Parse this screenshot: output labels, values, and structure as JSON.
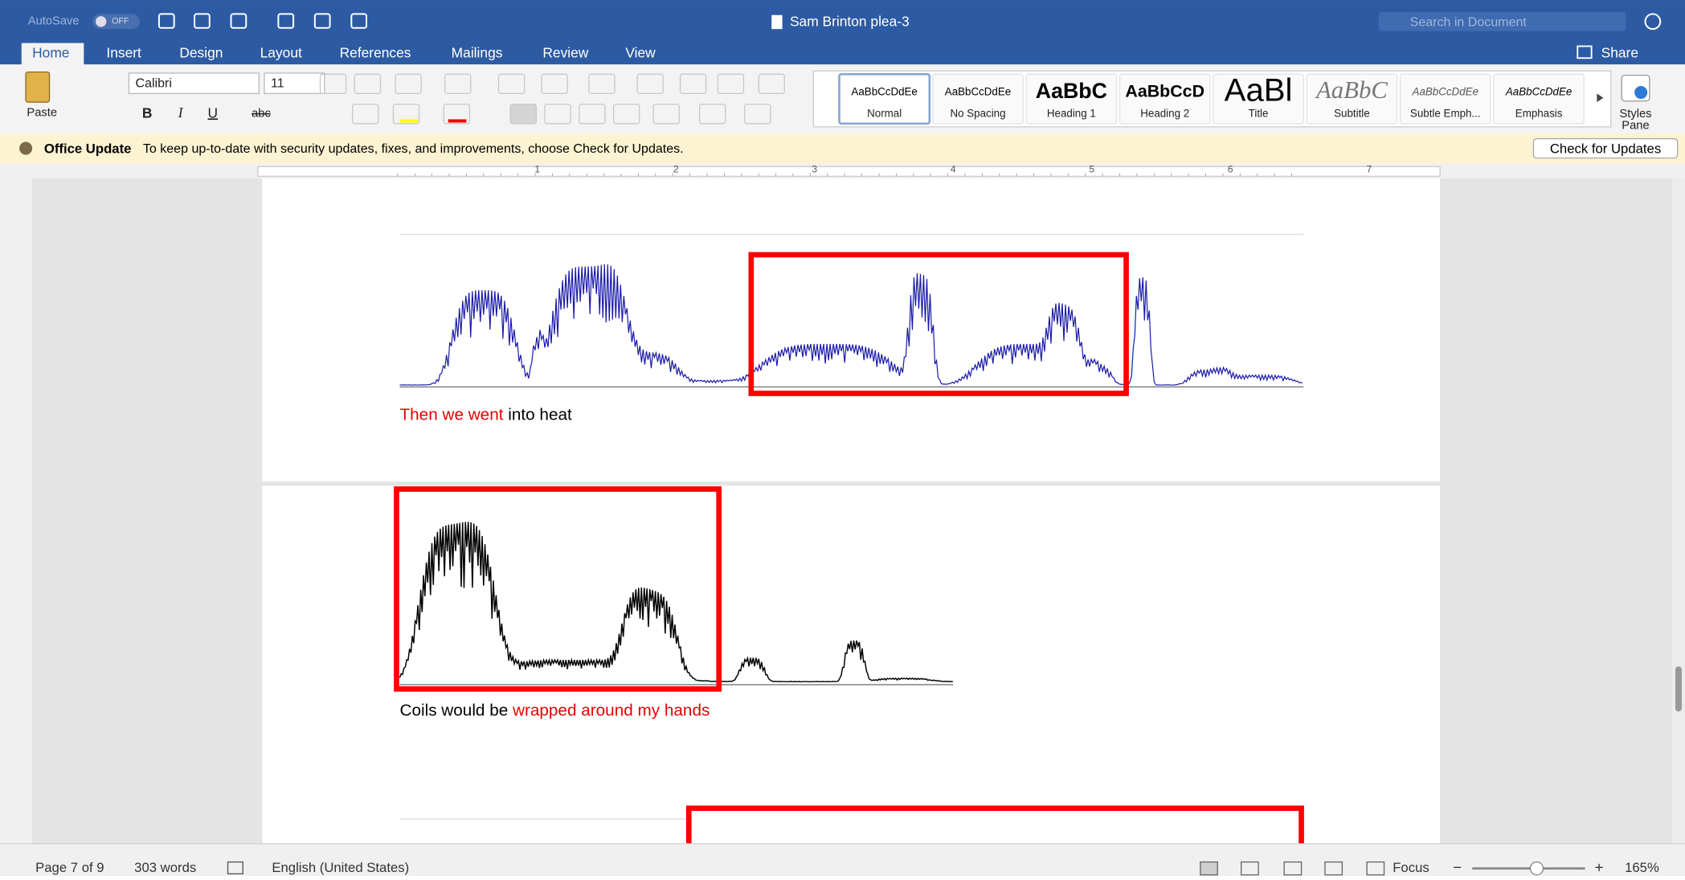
{
  "title_bar": {
    "autosave": "AutoSave",
    "autosave_state": "OFF",
    "document_title": "Sam Brinton plea-3",
    "search_placeholder": "Search in Document"
  },
  "tabs": [
    "Home",
    "Insert",
    "Design",
    "Layout",
    "References",
    "Mailings",
    "Review",
    "View"
  ],
  "share": "Share",
  "ribbon": {
    "paste": "Paste",
    "font_name": "Calibri",
    "font_size": "11",
    "format_buttons": [
      "B",
      "I",
      "U",
      "abc"
    ],
    "styles": [
      {
        "sample": "AaBbCcDdEe",
        "name": "Normal"
      },
      {
        "sample": "AaBbCcDdEe",
        "name": "No Spacing"
      },
      {
        "sample": "AaBbC",
        "name": "Heading 1"
      },
      {
        "sample": "AaBbCcD",
        "name": "Heading 2"
      },
      {
        "sample": "AaBl",
        "name": "Title"
      },
      {
        "sample": "AaBbC",
        "name": "Subtitle"
      },
      {
        "sample": "AaBbCcDdEe",
        "name": "Subtle Emph..."
      },
      {
        "sample": "AaBbCcDdEe",
        "name": "Emphasis"
      }
    ],
    "styles_pane": "Styles Pane"
  },
  "update_bar": {
    "title": "Office Update",
    "message": "To keep up-to-date with security updates, fixes, and improvements, choose Check for Updates.",
    "button": "Check for Updates"
  },
  "ruler": [
    "1",
    "2",
    "3",
    "4",
    "5",
    "6",
    "7"
  ],
  "document": {
    "captions": [
      [
        {
          "text": "Then we went",
          "color": "red"
        },
        {
          "text": " into heat",
          "color": "black"
        }
      ],
      [
        {
          "text": "Coils would be ",
          "color": "black"
        },
        {
          "text": "wrapped around my hands",
          "color": "red"
        }
      ]
    ]
  },
  "status_bar": {
    "page": "Page 7 of 9",
    "words": "303 words",
    "language": "English (United States)",
    "focus": "Focus",
    "zoom": "165%"
  }
}
